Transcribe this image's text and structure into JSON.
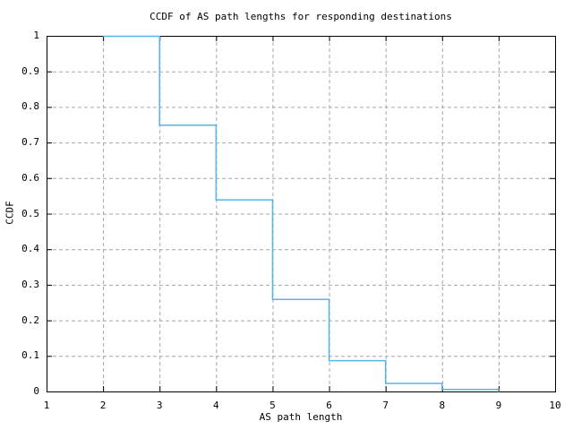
{
  "window": {
    "background": "#ffffff",
    "foreground": "#000000"
  },
  "chart_data": {
    "type": "line",
    "subtype": "step-post",
    "title": "CCDF of AS path lengths for responding destinations",
    "xlabel": "AS path length",
    "ylabel": "CCDF",
    "xlim": [
      1,
      10
    ],
    "ylim": [
      0,
      1
    ],
    "xticks": [
      1,
      2,
      3,
      4,
      5,
      6,
      7,
      8,
      9,
      10
    ],
    "xtick_labels": [
      "1",
      "2",
      "3",
      "4",
      "5",
      "6",
      "7",
      "8",
      "9",
      "10"
    ],
    "yticks": [
      0,
      0.1,
      0.2,
      0.3,
      0.4,
      0.5,
      0.6,
      0.7,
      0.8,
      0.9,
      1
    ],
    "ytick_labels": [
      "0",
      "0.1",
      "0.2",
      "0.3",
      "0.4",
      "0.5",
      "0.6",
      "0.7",
      "0.8",
      "0.9",
      "1"
    ],
    "grid": true,
    "grid_style": "dashed",
    "legend": "none",
    "series": [
      {
        "name": "CCDF of AS path length",
        "color": "#56B4E9",
        "x": [
          2,
          3,
          4,
          5,
          6,
          7,
          8,
          9
        ],
        "y": [
          1.0,
          0.75,
          0.54,
          0.26,
          0.088,
          0.024,
          0.007,
          0.0
        ]
      }
    ],
    "colors": {
      "border": "#000000",
      "tick": "#000000",
      "gridline": "#a6a6a6",
      "text": "#000000",
      "line": "#56B4E9"
    }
  }
}
